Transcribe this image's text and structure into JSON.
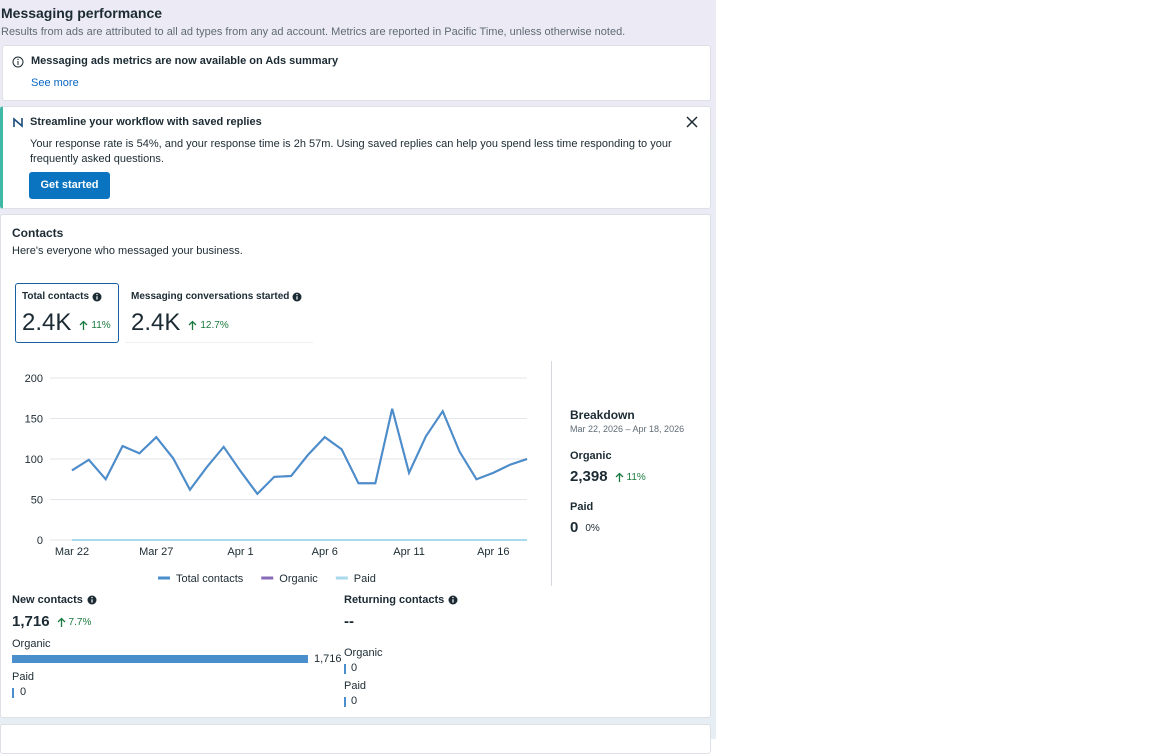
{
  "header": {
    "title": "Messaging performance",
    "subtitle": "Results from ads are attributed to all ad types from any ad account. Metrics are reported in Pacific Time, unless otherwise noted."
  },
  "notice": {
    "title": "Messaging ads metrics are now available on Ads summary",
    "link": "See more"
  },
  "promo": {
    "title": "Streamline your workflow with saved replies",
    "body": "Your response rate is 54%, and your response time is 2h 57m. Using saved replies can help you spend less time responding to your frequently asked questions.",
    "button": "Get started"
  },
  "contacts": {
    "title": "Contacts",
    "subtitle": "Here's everyone who messaged your business.",
    "metrics": [
      {
        "label": "Total contacts",
        "value": "2.4K",
        "change": "11%"
      },
      {
        "label": "Messaging conversations started",
        "value": "2.4K",
        "change": "12.7%"
      }
    ]
  },
  "chart_data": {
    "type": "line",
    "categories": [
      "Mar 22",
      null,
      null,
      null,
      null,
      "Mar 27",
      null,
      null,
      null,
      null,
      "Apr 1",
      null,
      null,
      null,
      null,
      "Apr 6",
      null,
      null,
      null,
      null,
      "Apr 11",
      null,
      null,
      null,
      null,
      "Apr 16",
      null,
      null
    ],
    "series": [
      {
        "name": "Total contacts",
        "color": "#4a8fcb",
        "values": [
          86,
          99,
          75,
          116,
          107,
          127,
          101,
          62,
          90,
          115,
          85,
          57,
          78,
          79,
          105,
          127,
          112,
          70,
          70,
          162,
          83,
          128,
          159,
          109,
          75,
          83,
          93,
          100
        ]
      },
      {
        "name": "Organic",
        "color": "#8a6bb8",
        "values": [
          86,
          99,
          75,
          116,
          107,
          127,
          101,
          62,
          90,
          115,
          85,
          57,
          78,
          79,
          105,
          127,
          112,
          70,
          70,
          162,
          83,
          128,
          159,
          109,
          75,
          83,
          93,
          100
        ]
      },
      {
        "name": "Paid",
        "color": "#a9d9ec",
        "values": [
          0,
          0,
          0,
          0,
          0,
          0,
          0,
          0,
          0,
          0,
          0,
          0,
          0,
          0,
          0,
          0,
          0,
          0,
          0,
          0,
          0,
          0,
          0,
          0,
          0,
          0,
          0,
          0
        ]
      }
    ],
    "ylim": [
      0,
      200
    ],
    "yticks": [
      0,
      50,
      100,
      150,
      200
    ],
    "grid": true
  },
  "breakdown": {
    "title": "Breakdown",
    "date_range": "Mar 22, 2026 – Apr 18, 2026",
    "items": [
      {
        "label": "Organic",
        "value": "2,398",
        "change": "11%"
      },
      {
        "label": "Paid",
        "value": "0",
        "change": "0%"
      }
    ]
  },
  "new_contacts": {
    "title": "New contacts",
    "value": "1,716",
    "change": "7.7%",
    "rows": [
      {
        "label": "Organic",
        "value": 1716,
        "value_label": "1,716"
      },
      {
        "label": "Paid",
        "value": 0
      }
    ]
  },
  "returning_contacts": {
    "title": "Returning contacts",
    "value": "--",
    "rows": [
      {
        "label": "Organic",
        "value": 0
      },
      {
        "label": "Paid",
        "value": 0
      }
    ]
  }
}
